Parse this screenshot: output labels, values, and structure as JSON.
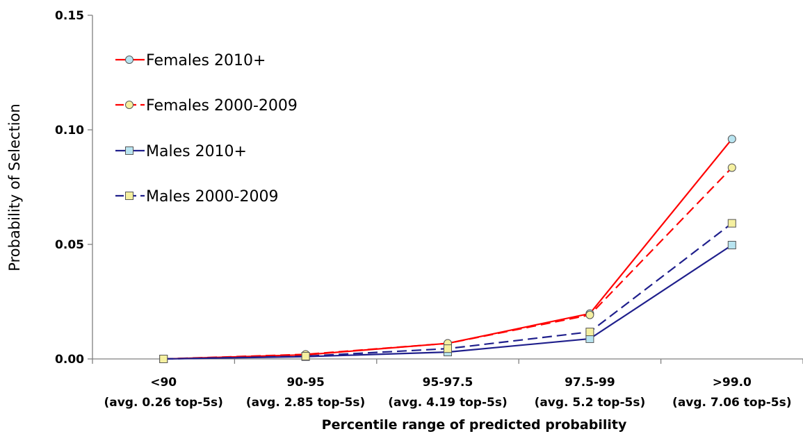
{
  "chart_data": {
    "type": "line",
    "title": "",
    "xlabel": "Percentile range of predicted probability",
    "ylabel": "Probability of Selection",
    "ylim": [
      0,
      0.15
    ],
    "yticks": [
      "0.00",
      "0.05",
      "0.10",
      "0.15"
    ],
    "ytick_values": [
      0,
      0.05,
      0.1,
      0.15
    ],
    "grid": false,
    "legend_position": "top-left",
    "categories": [
      {
        "line1": "<90",
        "line2": "(avg. 0.26 top-5s)"
      },
      {
        "line1": "90-95",
        "line2": "(avg. 2.85 top-5s)"
      },
      {
        "line1": "95-97.5",
        "line2": "(avg. 4.19 top-5s)"
      },
      {
        "line1": "97.5-99",
        "line2": "(avg. 5.2 top-5s)"
      },
      {
        "line1": ">99.0",
        "line2": "(avg. 7.06 top-5s)"
      }
    ],
    "series": [
      {
        "name": "Females 2010+",
        "values": [
          0.0,
          0.0018,
          0.0068,
          0.0198,
          0.096
        ],
        "color": "#ff0000",
        "dash": "solid",
        "marker": "circle",
        "marker_fill": "#b8e4f0"
      },
      {
        "name": "Females 2000-2009",
        "values": [
          0.0,
          0.002,
          0.0068,
          0.0192,
          0.0835
        ],
        "color": "#ff0000",
        "dash": "dashed",
        "marker": "circle",
        "marker_fill": "#f5f0a0"
      },
      {
        "name": "Males 2010+",
        "values": [
          0.0,
          0.001,
          0.003,
          0.0088,
          0.0497
        ],
        "color": "#1f1f8c",
        "dash": "solid",
        "marker": "square",
        "marker_fill": "#b8e4f0"
      },
      {
        "name": "Males 2000-2009",
        "values": [
          0.0,
          0.0012,
          0.0045,
          0.0118,
          0.0592
        ],
        "color": "#1f1f8c",
        "dash": "dashed",
        "marker": "square",
        "marker_fill": "#f5f0a0"
      }
    ]
  }
}
